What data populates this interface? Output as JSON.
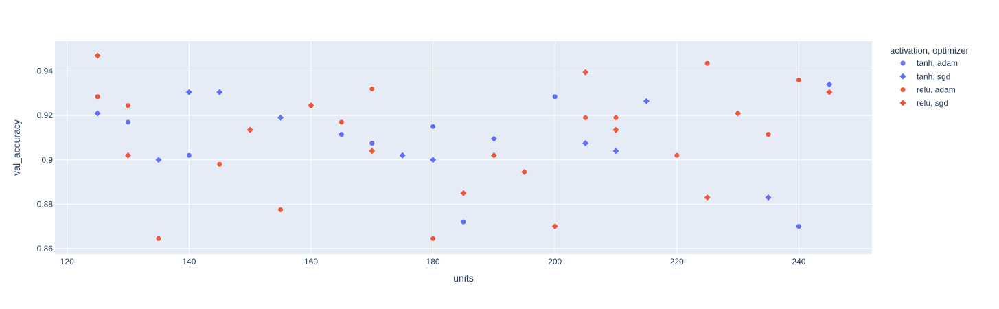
{
  "chart_data": {
    "type": "scatter",
    "title": "",
    "xlabel": "units",
    "ylabel": "val_accuracy",
    "xlim": [
      118,
      252
    ],
    "ylim": [
      0.8575,
      0.9535
    ],
    "x_ticks": [
      120,
      140,
      160,
      180,
      200,
      220,
      240
    ],
    "x_tick_labels": [
      "120",
      "140",
      "160",
      "180",
      "200",
      "220",
      "240"
    ],
    "y_ticks": [
      0.86,
      0.88,
      0.9,
      0.92,
      0.94
    ],
    "y_tick_labels": [
      "0.86",
      "0.88",
      "0.9",
      "0.92",
      "0.94"
    ],
    "grid": true,
    "legend_title": "activation, optimizer",
    "legend_position": "top-right outside",
    "series": [
      {
        "name": "tanh, adam",
        "color": "#636efa",
        "marker": "circle",
        "points": [
          [
            130,
            0.917
          ],
          [
            140,
            0.902
          ],
          [
            165,
            0.9115
          ],
          [
            170,
            0.9075
          ],
          [
            180,
            0.915
          ],
          [
            185,
            0.872
          ],
          [
            200,
            0.9285
          ],
          [
            240,
            0.87
          ]
        ]
      },
      {
        "name": "tanh, sgd",
        "color": "#636efa",
        "marker": "diamond",
        "points": [
          [
            125,
            0.921
          ],
          [
            135,
            0.9
          ],
          [
            140,
            0.9305
          ],
          [
            145,
            0.9305
          ],
          [
            155,
            0.919
          ],
          [
            175,
            0.902
          ],
          [
            180,
            0.9
          ],
          [
            190,
            0.9095
          ],
          [
            205,
            0.9075
          ],
          [
            210,
            0.904
          ],
          [
            215,
            0.9265
          ],
          [
            235,
            0.883
          ],
          [
            245,
            0.934
          ]
        ]
      },
      {
        "name": "relu, adam",
        "color": "#ef553b",
        "marker": "circle",
        "points": [
          [
            125,
            0.9285
          ],
          [
            130,
            0.9245
          ],
          [
            135,
            0.8645
          ],
          [
            145,
            0.898
          ],
          [
            155,
            0.8775
          ],
          [
            160,
            0.9245
          ],
          [
            165,
            0.917
          ],
          [
            170,
            0.932
          ],
          [
            180,
            0.8645
          ],
          [
            205,
            0.919
          ],
          [
            210,
            0.919
          ],
          [
            220,
            0.902
          ],
          [
            225,
            0.9435
          ],
          [
            235,
            0.9115
          ],
          [
            240,
            0.936
          ]
        ]
      },
      {
        "name": "relu, sgd",
        "color": "#ef553b",
        "marker": "diamond",
        "points": [
          [
            125,
            0.947
          ],
          [
            130,
            0.902
          ],
          [
            150,
            0.9135
          ],
          [
            160,
            0.9245
          ],
          [
            170,
            0.904
          ],
          [
            185,
            0.885
          ],
          [
            190,
            0.902
          ],
          [
            195,
            0.8945
          ],
          [
            200,
            0.87
          ],
          [
            205,
            0.9395
          ],
          [
            210,
            0.9135
          ],
          [
            225,
            0.883
          ],
          [
            230,
            0.921
          ],
          [
            245,
            0.9305
          ]
        ]
      }
    ]
  }
}
